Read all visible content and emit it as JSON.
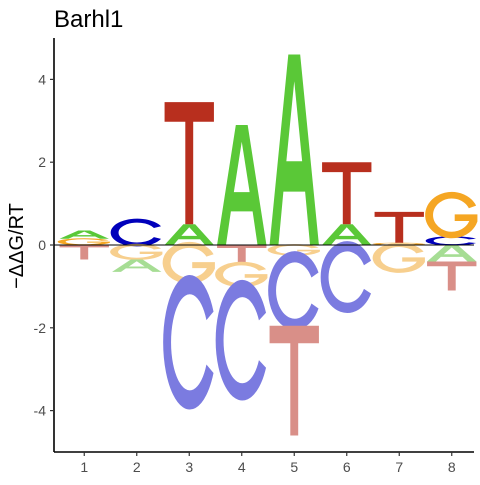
{
  "chart_data": {
    "type": "sequence-logo",
    "title": "Barhl1",
    "ylabel": "−ΔΔG/RT",
    "xlabel": "",
    "positions": [
      1,
      2,
      3,
      4,
      5,
      6,
      7,
      8
    ],
    "ylim": [
      -5.0,
      5.0
    ],
    "yticks": [
      -4,
      -2,
      0,
      2,
      4
    ],
    "colors": {
      "A": "#5ac837",
      "C": "#0000bb",
      "G": "#f5a623",
      "T": "#b82f1e"
    },
    "columns": [
      {
        "position": 1,
        "above": [
          {
            "letter": "G",
            "value": 0.15
          },
          {
            "letter": "A",
            "value": 0.2
          }
        ],
        "below": [
          {
            "letter": "T",
            "value": 0.35
          }
        ]
      },
      {
        "position": 2,
        "above": [
          {
            "letter": "C",
            "value": 0.6
          }
        ],
        "below": [
          {
            "letter": "G",
            "value": 0.35
          },
          {
            "letter": "A",
            "value": 0.3
          }
        ]
      },
      {
        "position": 3,
        "above": [
          {
            "letter": "A",
            "value": 0.5
          },
          {
            "letter": "T",
            "value": 2.95
          }
        ],
        "below": [
          {
            "letter": "G",
            "value": 0.9
          },
          {
            "letter": "C",
            "value": 2.9
          }
        ]
      },
      {
        "position": 4,
        "above": [
          {
            "letter": "A",
            "value": 2.9
          }
        ],
        "below": [
          {
            "letter": "T",
            "value": 0.45
          },
          {
            "letter": "G",
            "value": 0.55
          },
          {
            "letter": "C",
            "value": 2.6
          }
        ]
      },
      {
        "position": 5,
        "above": [
          {
            "letter": "A",
            "value": 4.6
          }
        ],
        "below": [
          {
            "letter": "G",
            "value": 0.25
          },
          {
            "letter": "C",
            "value": 1.7
          },
          {
            "letter": "T",
            "value": 2.65
          }
        ]
      },
      {
        "position": 6,
        "above": [
          {
            "letter": "A",
            "value": 0.5
          },
          {
            "letter": "T",
            "value": 1.5
          }
        ],
        "below": [
          {
            "letter": "C",
            "value": 1.55
          }
        ]
      },
      {
        "position": 7,
        "above": [
          {
            "letter": "G",
            "value": 0.05
          },
          {
            "letter": "T",
            "value": 0.75
          }
        ],
        "below": [
          {
            "letter": "G",
            "value": 0.65
          }
        ]
      },
      {
        "position": 8,
        "above": [
          {
            "letter": "C",
            "value": 0.2
          },
          {
            "letter": "G",
            "value": 1.0
          }
        ],
        "below": [
          {
            "letter": "A",
            "value": 0.4
          },
          {
            "letter": "T",
            "value": 0.7
          }
        ]
      }
    ]
  }
}
